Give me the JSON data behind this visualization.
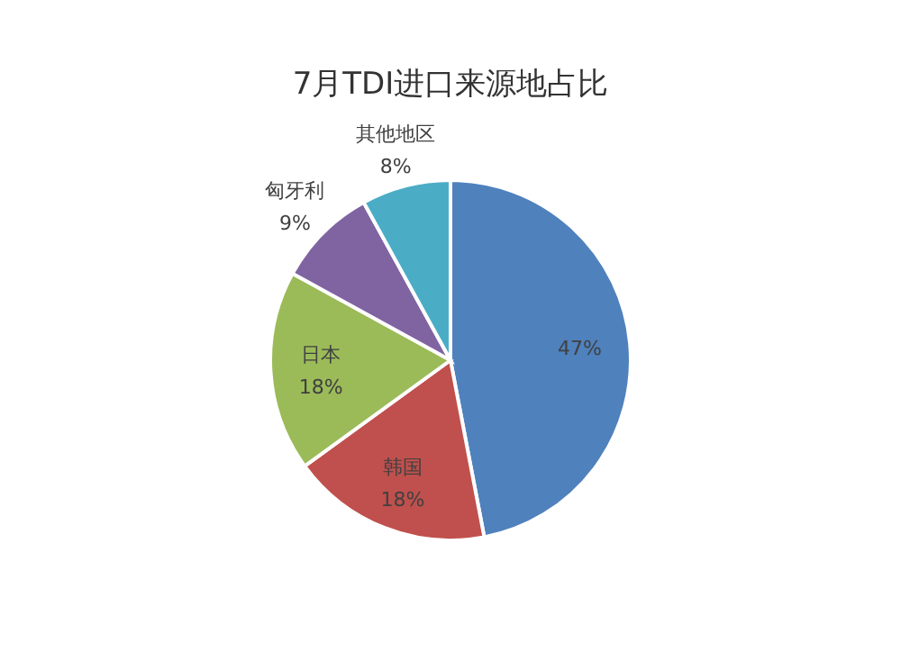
{
  "chart_data": {
    "type": "pie",
    "title": "7月TDI进口来源地占比",
    "categories": [
      null,
      "韩国",
      "日本",
      "匈牙利",
      "其他地区"
    ],
    "values": [
      47,
      18,
      18,
      9,
      8
    ],
    "value_labels": [
      "47%",
      "18%",
      "18%",
      "9%",
      "8%"
    ],
    "colors": [
      "#4f81bd",
      "#c0504d",
      "#9bbb59",
      "#8064a2",
      "#4bacc6"
    ]
  }
}
